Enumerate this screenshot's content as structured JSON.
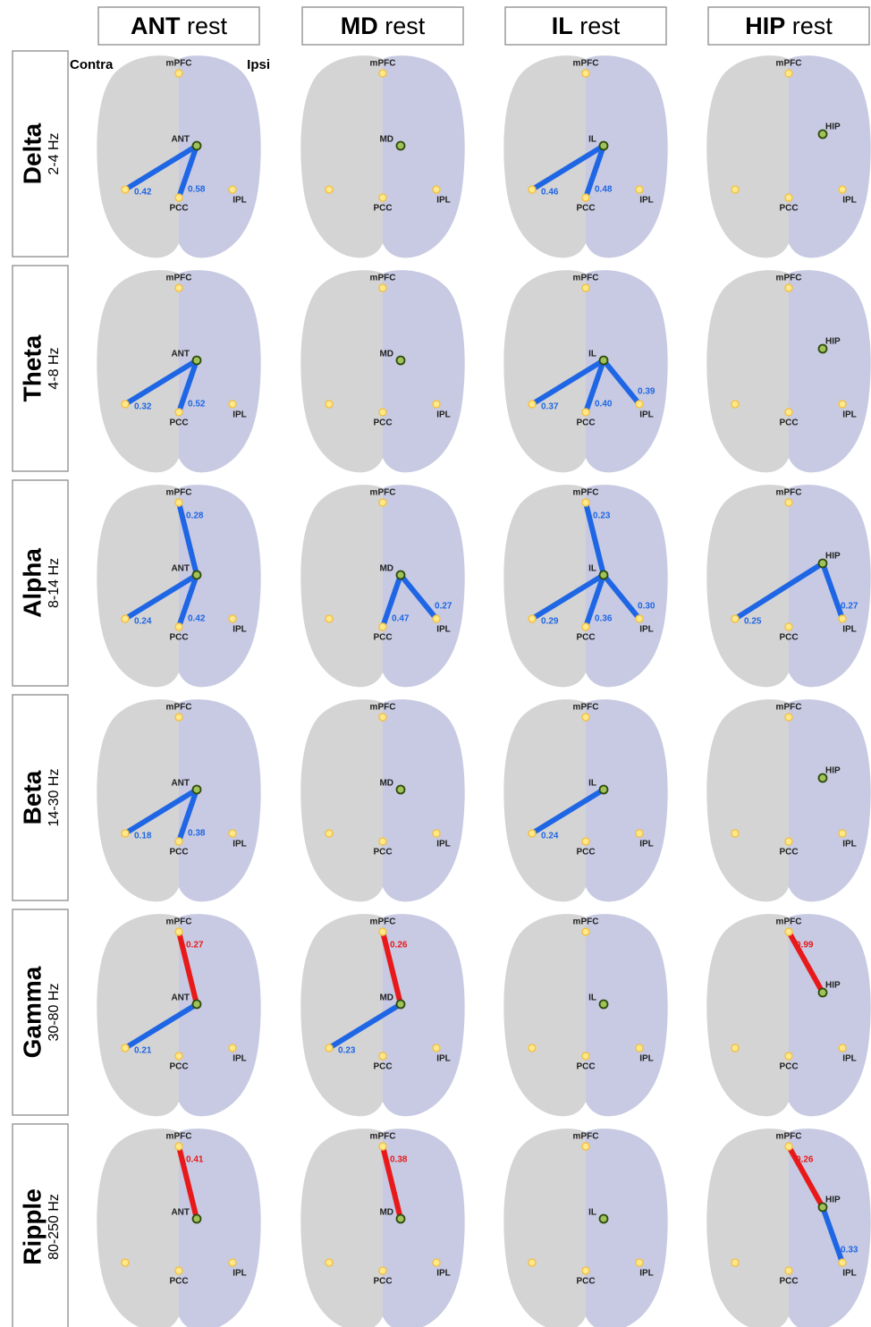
{
  "sides": {
    "contra": "Contra",
    "ipsi": "Ipsi"
  },
  "nodes": {
    "mPFC": "mPFC",
    "PCC": "PCC",
    "IPL": "IPL"
  },
  "columns": [
    {
      "seed": "ANT",
      "suffix": "rest"
    },
    {
      "seed": "MD",
      "suffix": "rest"
    },
    {
      "seed": "IL",
      "suffix": "rest"
    },
    {
      "seed": "HIP",
      "suffix": "rest"
    }
  ],
  "rows": [
    {
      "band": "Delta",
      "range": "2-4 Hz"
    },
    {
      "band": "Theta",
      "range": "4-8 Hz"
    },
    {
      "band": "Alpha",
      "range": "8-14 Hz"
    },
    {
      "band": "Beta",
      "range": "14-30 Hz"
    },
    {
      "band": "Gamma",
      "range": "30-80 Hz"
    },
    {
      "band": "Ripple",
      "range": "80-250 Hz"
    }
  ],
  "panels": [
    [
      {
        "edges": [
          {
            "to": "IPL",
            "side": "Contra",
            "value": "0.42",
            "color": "#1f66e5"
          },
          {
            "to": "PCC",
            "value": "0.58",
            "color": "#1f66e5"
          }
        ]
      },
      {
        "edges": []
      },
      {
        "edges": [
          {
            "to": "IPL",
            "side": "Contra",
            "value": "0.46",
            "color": "#1f66e5"
          },
          {
            "to": "PCC",
            "value": "0.48",
            "color": "#1f66e5"
          }
        ]
      },
      {
        "edges": []
      }
    ],
    [
      {
        "edges": [
          {
            "to": "IPL",
            "side": "Contra",
            "value": "0.32",
            "color": "#1f66e5"
          },
          {
            "to": "PCC",
            "value": "0.52",
            "color": "#1f66e5"
          }
        ]
      },
      {
        "edges": []
      },
      {
        "edges": [
          {
            "to": "IPL",
            "side": "Contra",
            "value": "0.37",
            "color": "#1f66e5"
          },
          {
            "to": "PCC",
            "value": "0.40",
            "color": "#1f66e5"
          },
          {
            "to": "IPL",
            "side": "Ipsi",
            "value": "0.39",
            "color": "#1f66e5"
          }
        ]
      },
      {
        "edges": []
      }
    ],
    [
      {
        "edges": [
          {
            "to": "mPFC",
            "value": "0.28",
            "color": "#1f66e5"
          },
          {
            "to": "IPL",
            "side": "Contra",
            "value": "0.24",
            "color": "#1f66e5"
          },
          {
            "to": "PCC",
            "value": "0.42",
            "color": "#1f66e5"
          }
        ]
      },
      {
        "edges": [
          {
            "to": "PCC",
            "value": "0.47",
            "color": "#1f66e5"
          },
          {
            "to": "IPL",
            "side": "Ipsi",
            "value": "0.27",
            "color": "#1f66e5"
          }
        ]
      },
      {
        "edges": [
          {
            "to": "mPFC",
            "value": "0.23",
            "color": "#1f66e5"
          },
          {
            "to": "IPL",
            "side": "Contra",
            "value": "0.29",
            "color": "#1f66e5"
          },
          {
            "to": "PCC",
            "value": "0.36",
            "color": "#1f66e5"
          },
          {
            "to": "IPL",
            "side": "Ipsi",
            "value": "0.30",
            "color": "#1f66e5"
          }
        ]
      },
      {
        "edges": [
          {
            "to": "IPL",
            "side": "Contra",
            "value": "0.25",
            "color": "#1f66e5"
          },
          {
            "to": "IPL",
            "side": "Ipsi",
            "value": "0.27",
            "color": "#1f66e5"
          }
        ]
      }
    ],
    [
      {
        "edges": [
          {
            "to": "IPL",
            "side": "Contra",
            "value": "0.18",
            "color": "#1f66e5"
          },
          {
            "to": "PCC",
            "value": "0.38",
            "color": "#1f66e5"
          }
        ]
      },
      {
        "edges": []
      },
      {
        "edges": [
          {
            "to": "IPL",
            "side": "Contra",
            "value": "0.24",
            "color": "#1f66e5"
          }
        ]
      },
      {
        "edges": []
      }
    ],
    [
      {
        "edges": [
          {
            "to": "mPFC",
            "value": "0.27",
            "color": "#e8191a"
          },
          {
            "to": "IPL",
            "side": "Contra",
            "value": "0.21",
            "color": "#1f66e5"
          }
        ]
      },
      {
        "edges": [
          {
            "to": "mPFC",
            "value": "0.26",
            "color": "#e8191a"
          },
          {
            "to": "IPL",
            "side": "Contra",
            "value": "0.23",
            "color": "#1f66e5"
          }
        ]
      },
      {
        "edges": []
      },
      {
        "edges": [
          {
            "to": "mPFC",
            "value": "0.99",
            "color": "#e8191a"
          }
        ]
      }
    ],
    [
      {
        "edges": [
          {
            "to": "mPFC",
            "value": "0.41",
            "color": "#e8191a"
          }
        ]
      },
      {
        "edges": [
          {
            "to": "mPFC",
            "value": "0.38",
            "color": "#e8191a"
          }
        ]
      },
      {
        "edges": []
      },
      {
        "edges": [
          {
            "to": "mPFC",
            "value": "0.26",
            "color": "#e8191a"
          },
          {
            "to": "IPL",
            "side": "Ipsi",
            "value": "0.33",
            "color": "#1f66e5"
          }
        ]
      }
    ]
  ]
}
